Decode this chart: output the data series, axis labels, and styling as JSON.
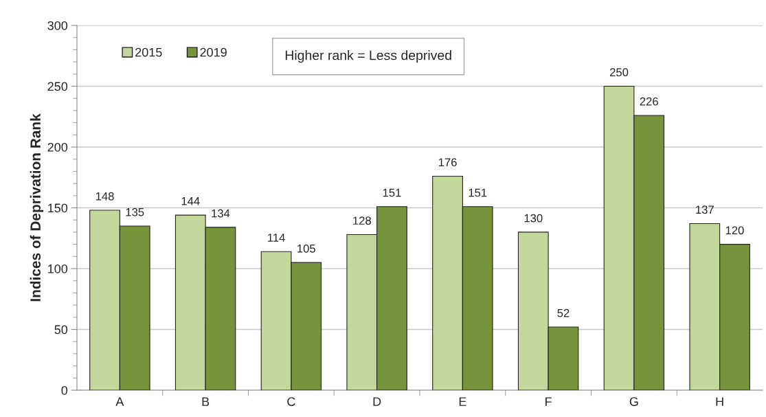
{
  "chart_data": {
    "type": "bar",
    "ylabel": "Indices of Deprivation Rank",
    "categories": [
      "A",
      "B",
      "C",
      "D",
      "E",
      "F",
      "G",
      "H"
    ],
    "series": [
      {
        "name": "2015",
        "color": "#c4d79b",
        "values": [
          148,
          144,
          114,
          128,
          176,
          130,
          250,
          137
        ]
      },
      {
        "name": "2019",
        "color": "#77933c",
        "values": [
          135,
          134,
          105,
          151,
          151,
          52,
          226,
          120
        ]
      }
    ],
    "ylim": [
      0,
      300
    ],
    "yticks": [
      0,
      50,
      100,
      150,
      200,
      250,
      300
    ],
    "grid": "y",
    "legend": "top left",
    "data_labels": true,
    "annotations": [
      "Higher rank = Less deprived"
    ]
  }
}
